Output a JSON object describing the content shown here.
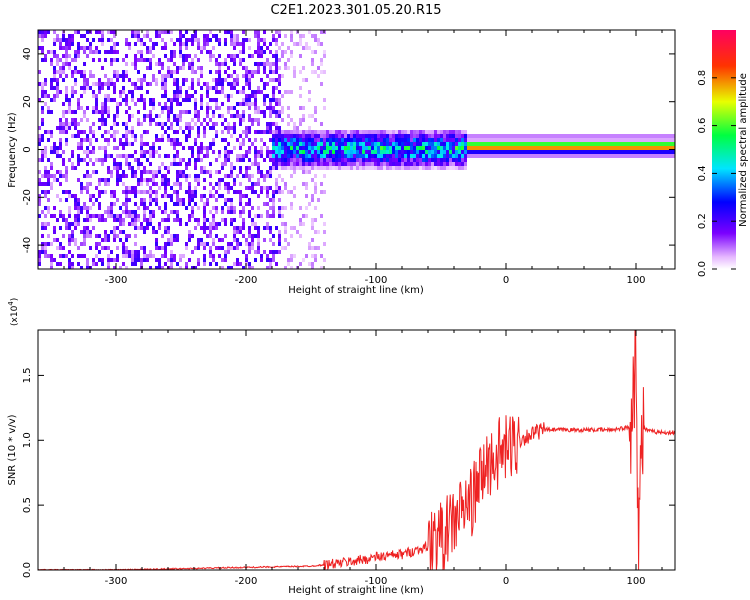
{
  "title": "C2E1.2023.301.05.20.R15",
  "colors": {
    "snr_line": "#ee2222",
    "axis": "#000000",
    "background": "#ffffff"
  },
  "chart_data": [
    {
      "type": "heatmap",
      "xlabel": "Height of straight line (km)",
      "ylabel": "Frequency (Hz)",
      "xlim": [
        -360,
        130
      ],
      "ylim": [
        -50,
        50
      ],
      "xticks": [
        -300,
        -200,
        -100,
        0,
        100
      ],
      "yticks": [
        -40,
        -20,
        0,
        20,
        40
      ],
      "colorbar": {
        "label": "Normalized spectral amplitude",
        "range": [
          0,
          1
        ],
        "ticks": [
          0.0,
          0.2,
          0.4,
          0.6,
          0.8
        ],
        "colormap": "rainbow (white-violet-blue-cyan-green-yellow-red)"
      },
      "description_regions": [
        {
          "x": [
            -360,
            -175
          ],
          "y": [
            -50,
            50
          ],
          "amplitude": 0.1
        },
        {
          "x": [
            -175,
            -140
          ],
          "y": [
            -50,
            50
          ],
          "amplitude": 0.05
        },
        {
          "x": [
            -180,
            -30
          ],
          "y": [
            -5,
            8
          ],
          "amplitude": 0.45
        },
        {
          "x": [
            -30,
            130
          ],
          "y": [
            0,
            4
          ],
          "amplitude": 0.9
        }
      ]
    },
    {
      "type": "line",
      "xlabel": "Height of straight line (km)",
      "ylabel": "SNR (10 * v/v)",
      "y_multiplier": "(x10",
      "y_multiplier_exp": "4",
      "y_multiplier_close": ")",
      "xlim": [
        -360,
        130
      ],
      "ylim": [
        0,
        1.85
      ],
      "xticks": [
        -300,
        -200,
        -100,
        0,
        100
      ],
      "yticks": [
        0.0,
        0.5,
        1.0,
        1.5
      ],
      "series": [
        {
          "x": [
            -360,
            -300,
            -250,
            -200,
            -150,
            -130,
            -110,
            -100,
            -80,
            -60,
            -45,
            -35,
            -25,
            -20,
            -15,
            -10,
            -5,
            0,
            10,
            20,
            30,
            40,
            60,
            80,
            95,
            100,
            102,
            105,
            110,
            120,
            130
          ],
          "y": [
            0.0,
            0.0,
            0.01,
            0.02,
            0.03,
            0.05,
            0.08,
            0.1,
            0.12,
            0.18,
            0.3,
            0.45,
            0.55,
            0.7,
            0.8,
            0.85,
            0.9,
            0.92,
            1.0,
            1.05,
            1.08,
            1.08,
            1.08,
            1.08,
            1.1,
            1.7,
            0.3,
            1.1,
            1.07,
            1.06,
            1.06
          ]
        }
      ]
    }
  ]
}
